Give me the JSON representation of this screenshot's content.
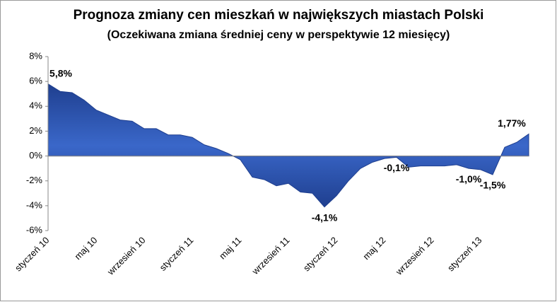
{
  "chart_data": {
    "type": "area",
    "title": "Prognoza zmiany cen mieszkań w największych miastach Polski",
    "subtitle": "(Oczekiwana zmiana średniej ceny w perspektywie 12 miesięcy)",
    "categories": [
      "styczeń 10",
      null,
      null,
      null,
      "maj 10",
      null,
      null,
      null,
      "wrzesień 10",
      null,
      null,
      null,
      "styczeń 11",
      null,
      null,
      null,
      "maj 11",
      null,
      null,
      null,
      "wrzesień 11",
      null,
      null,
      null,
      "styczeń 12",
      null,
      null,
      null,
      "maj 12",
      null,
      null,
      null,
      "wrzesień 12",
      null,
      null,
      null,
      "styczeń 13",
      null,
      null,
      null,
      null
    ],
    "values": [
      5.8,
      5.2,
      5.1,
      4.5,
      3.7,
      3.3,
      2.9,
      2.8,
      2.2,
      2.2,
      1.7,
      1.7,
      1.5,
      0.9,
      0.6,
      0.2,
      -0.3,
      -1.7,
      -1.9,
      -2.4,
      -2.2,
      -2.9,
      -3.0,
      -4.1,
      -3.2,
      -2.0,
      -1.0,
      -0.5,
      -0.2,
      -0.1,
      -0.9,
      -0.8,
      -0.8,
      -0.8,
      -0.7,
      -1.0,
      -1.1,
      -1.5,
      0.7,
      1.1,
      1.77
    ],
    "value_labels": [
      "5,8%",
      null,
      null,
      null,
      null,
      null,
      null,
      null,
      null,
      null,
      null,
      null,
      null,
      null,
      null,
      null,
      null,
      null,
      null,
      null,
      null,
      null,
      null,
      "-4,1%",
      null,
      null,
      null,
      null,
      null,
      "-0,1%",
      null,
      null,
      null,
      null,
      null,
      "-1,0%",
      null,
      "-1,5%",
      null,
      null,
      "1,77%"
    ],
    "color": "#1f3f8f",
    "ylim": [
      -6,
      8
    ],
    "yticks": [
      {
        "value": -6,
        "label": "-6%"
      },
      {
        "value": -4,
        "label": "-4%"
      },
      {
        "value": -2,
        "label": "-2%"
      },
      {
        "value": 0,
        "label": "0%"
      },
      {
        "value": 2,
        "label": "2%"
      },
      {
        "value": 4,
        "label": "4%"
      },
      {
        "value": 6,
        "label": "6%"
      },
      {
        "value": 8,
        "label": "8%"
      }
    ]
  }
}
